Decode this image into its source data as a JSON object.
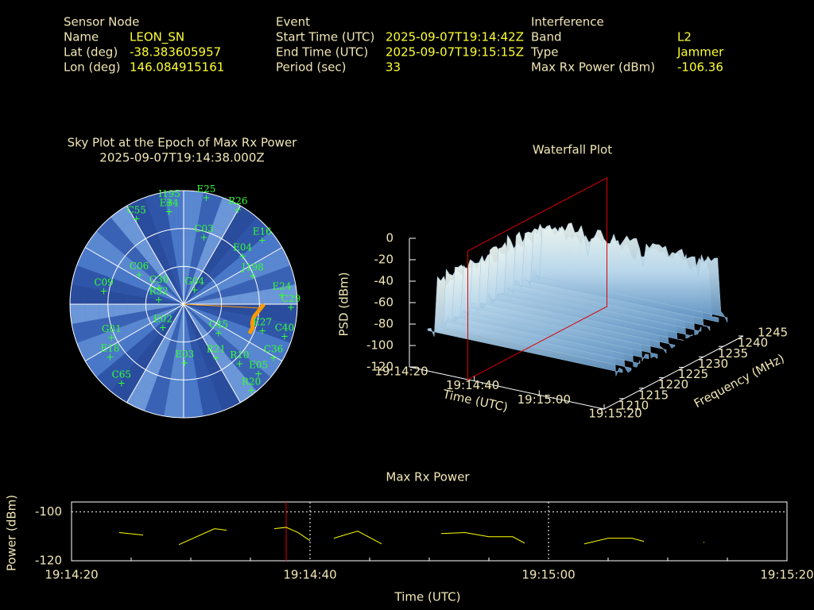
{
  "header": [
    {
      "title": "Sensor Node",
      "rows": [
        [
          "Name",
          "LEON_SN"
        ],
        [
          "Lat (deg)",
          "-38.383605957"
        ],
        [
          "Lon (deg)",
          "146.084915161"
        ]
      ]
    },
    {
      "title": "Event",
      "rows": [
        [
          "Start Time (UTC)",
          "2025-09-07T19:14:42Z"
        ],
        [
          "End Time (UTC)",
          "2025-09-07T19:15:15Z"
        ],
        [
          "Period (sec)",
          "33"
        ]
      ]
    },
    {
      "title": "Interference",
      "rows": [
        [
          "Band",
          "L2"
        ],
        [
          "Type",
          "Jammer"
        ],
        [
          "Max Rx Power (dBm)",
          "-106.36"
        ]
      ]
    }
  ],
  "chart_data": [
    {
      "type": "polar",
      "title": "Sky Plot at the Epoch of Max Rx Power",
      "subtitle": "2025-09-07T19:14:38.000Z",
      "color": "#00ff00",
      "labels": [
        "I195",
        "E25",
        "R26",
        "E34",
        "C55",
        "E16",
        "C03",
        "E04",
        "J198",
        "E24",
        "C29",
        "G04",
        "C30",
        "R32",
        "C06",
        "C09",
        "C45",
        "E27",
        "C40",
        "R21",
        "R10",
        "C36",
        "E03",
        "E05",
        "R20",
        "C65",
        "E18",
        "G01",
        "E02"
      ],
      "azimuth": [
        352,
        12,
        30,
        351,
        331,
        51,
        17,
        51,
        68,
        85,
        92,
        38,
        302,
        279,
        303,
        279,
        130,
        109,
        108,
        149,
        137,
        121,
        179,
        133,
        142,
        218,
        234,
        245,
        221
      ],
      "elevation": [
        9,
        4,
        4,
        16,
        13,
        10,
        35,
        30,
        31,
        12,
        5,
        76,
        67,
        70,
        48,
        26,
        54,
        24,
        6,
        40,
        25,
        7,
        43,
        9,
        3,
        10,
        18,
        27,
        65
      ],
      "rticks": [
        0,
        30,
        60
      ]
    },
    {
      "type": "waterfall",
      "title": "Waterfall Plot",
      "xlabel": "Time (UTC)",
      "ylabel": "Frequency (MHz)",
      "zlabel": "PSD (dBm)",
      "xlim": [
        0,
        60
      ],
      "xticks": [
        {
          "value": 0,
          "label": "19:14:20"
        },
        {
          "value": 20,
          "label": "19:14:40"
        },
        {
          "value": 40,
          "label": "19:15:00"
        },
        {
          "value": 60,
          "label": "19:15:20"
        }
      ],
      "ylim": [
        1210,
        1245
      ],
      "yticks": [
        1210,
        1215,
        1220,
        1225,
        1230,
        1235,
        1240,
        1245
      ],
      "zlim": [
        -120,
        0
      ],
      "zticks": [
        0,
        -20,
        -40,
        -60,
        -80,
        -100,
        -120
      ]
    },
    {
      "type": "line",
      "title": "Max Rx Power",
      "xlabel": "Time (UTC)",
      "ylabel": "Power (dBm)",
      "color": "#ffff00",
      "x": [
        4,
        6,
        null,
        9,
        12,
        13,
        null,
        17,
        18,
        19,
        20,
        null,
        22,
        24,
        26,
        null,
        31,
        33,
        35,
        37,
        38,
        null,
        43,
        45,
        47,
        48,
        null,
        53
      ],
      "values": [
        -108.5,
        -109.5,
        null,
        -113.4,
        -106.9,
        -107.5,
        null,
        -106.9,
        -106.36,
        -108.5,
        -111.8,
        null,
        -110.8,
        -107.9,
        -113.1,
        null,
        -108.9,
        -108.5,
        -110.2,
        -110.2,
        -112.8,
        null,
        -113.1,
        -110.8,
        -110.8,
        -112.1,
        null,
        -112.5
      ],
      "marker_x": 18,
      "xlim": [
        0,
        60
      ],
      "xticks": [
        {
          "value": 0,
          "label": "19:14:20"
        },
        {
          "value": 20,
          "label": "19:14:40"
        },
        {
          "value": 40,
          "label": "19:15:00"
        },
        {
          "value": 60,
          "label": "19:15:20"
        }
      ],
      "ylim": [
        -120,
        -96
      ],
      "yticks": [
        -100,
        -120
      ],
      "grid": true
    }
  ]
}
